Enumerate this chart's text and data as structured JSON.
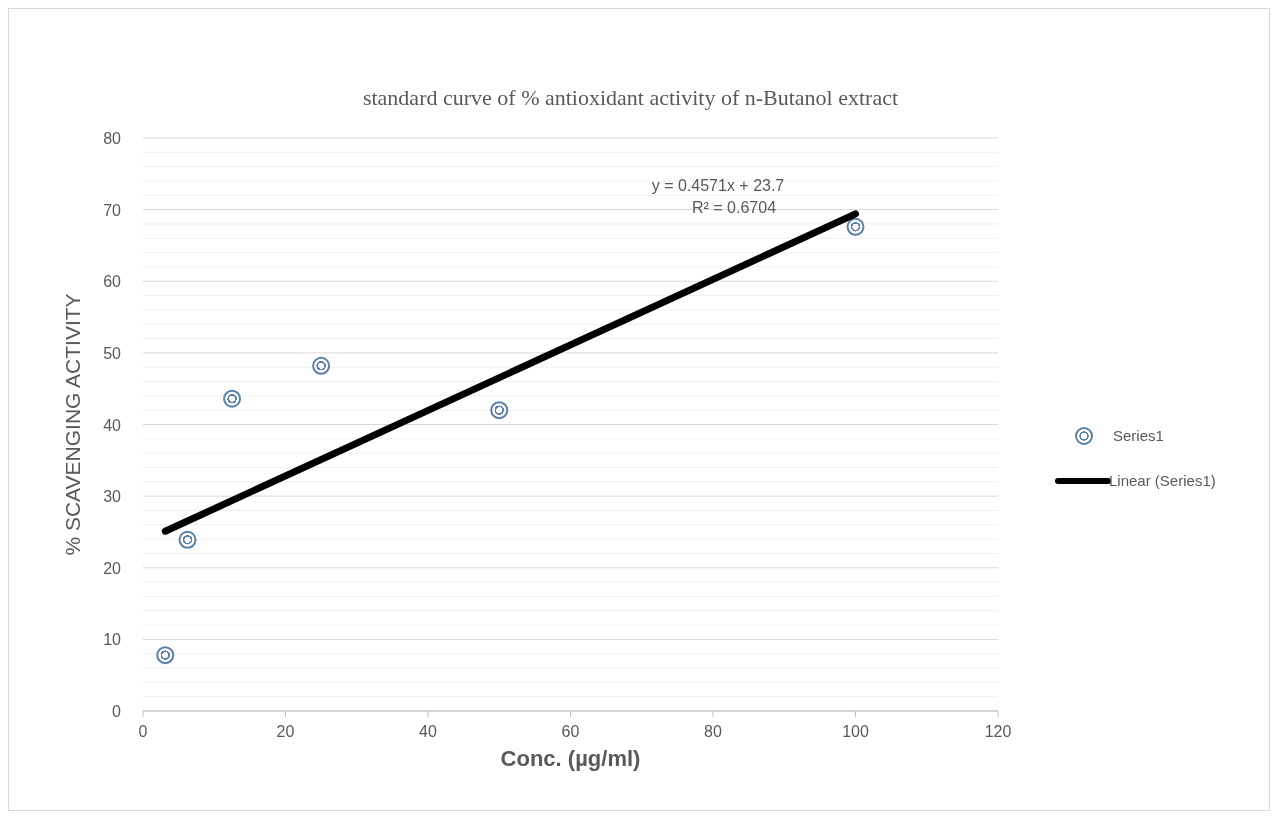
{
  "chart_data": {
    "type": "scatter",
    "title": "standard curve of % antioxidant activity of n-Butanol extract",
    "xlabel": "Conc. (µg/ml)",
    "ylabel": "% SCAVENGING ACTIVITY",
    "series": [
      {
        "name": "Series1",
        "marker": "circle",
        "color": "#5b7fad",
        "x": [
          3.125,
          6.25,
          12.5,
          25,
          50,
          100
        ],
        "values": [
          7.8,
          23.9,
          43.6,
          48.2,
          42.0,
          67.6
        ]
      },
      {
        "name": "Linear (Series1)",
        "type": "line",
        "color": "#000000",
        "x": [
          3.125,
          100
        ],
        "values": [
          25.1,
          69.4
        ]
      }
    ],
    "annotations": [
      "y = 0.4571x + 23.7",
      "R² = 0.6704"
    ],
    "xlim": [
      0,
      120
    ],
    "xticks": [
      0,
      20,
      40,
      60,
      80,
      100,
      120
    ],
    "ylim": [
      0,
      80
    ],
    "yticks": [
      0,
      10,
      20,
      30,
      40,
      50,
      60,
      70,
      80
    ],
    "grid": "y",
    "legend": "right"
  }
}
